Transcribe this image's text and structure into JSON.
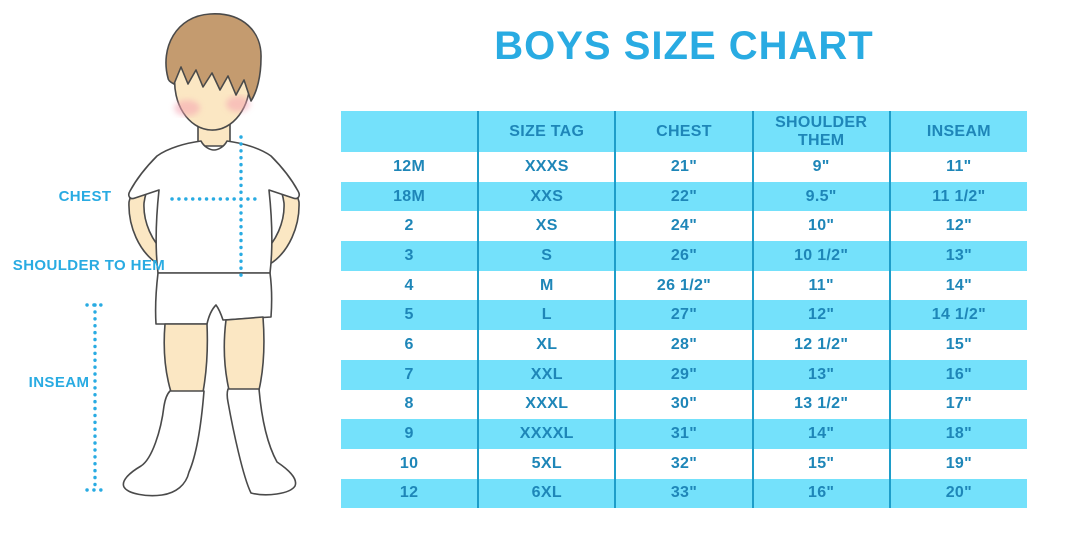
{
  "title": "BOYS SIZE CHART",
  "colors": {
    "accent": "#29ABE2",
    "band": "#74E1FB",
    "divider": "#1E9DC9",
    "table_text": "#1E86B8",
    "skin": "#FBE7C3",
    "hair": "#C49B6F",
    "outline": "#4A4A4A",
    "cheek": "#F5A3B1"
  },
  "figure": {
    "labels": {
      "chest": "CHEST",
      "shoulder_to_hem": "SHOULDER TO HEM",
      "inseam": "INSEAM"
    }
  },
  "table": {
    "headers": [
      "",
      "SIZE TAG",
      "CHEST",
      "SHOULDER THEM",
      "INSEAM"
    ],
    "rows": [
      [
        "12M",
        "XXXS",
        "21\"",
        "9\"",
        "11\""
      ],
      [
        "18M",
        "XXS",
        "22\"",
        "9.5\"",
        "11 1/2\""
      ],
      [
        "2",
        "XS",
        "24\"",
        "10\"",
        "12\""
      ],
      [
        "3",
        "S",
        "26\"",
        "10 1/2\"",
        "13\""
      ],
      [
        "4",
        "M",
        "26 1/2\"",
        "11\"",
        "14\""
      ],
      [
        "5",
        "L",
        "27\"",
        "12\"",
        "14 1/2\""
      ],
      [
        "6",
        "XL",
        "28\"",
        "12 1/2\"",
        "15\""
      ],
      [
        "7",
        "XXL",
        "29\"",
        "13\"",
        "16\""
      ],
      [
        "8",
        "XXXL",
        "30\"",
        "13 1/2\"",
        "17\""
      ],
      [
        "9",
        "XXXXL",
        "31\"",
        "14\"",
        "18\""
      ],
      [
        "10",
        "5XL",
        "32\"",
        "15\"",
        "19\""
      ],
      [
        "12",
        "6XL",
        "33\"",
        "16\"",
        "20\""
      ]
    ]
  },
  "chart_data": {
    "type": "table",
    "title": "BOYS SIZE CHART",
    "columns": [
      "",
      "SIZE TAG",
      "CHEST",
      "SHOULDER THEM",
      "INSEAM"
    ],
    "rows": [
      [
        "12M",
        "XXXS",
        "21\"",
        "9\"",
        "11\""
      ],
      [
        "18M",
        "XXS",
        "22\"",
        "9.5\"",
        "11 1/2\""
      ],
      [
        "2",
        "XS",
        "24\"",
        "10\"",
        "12\""
      ],
      [
        "3",
        "S",
        "26\"",
        "10 1/2\"",
        "13\""
      ],
      [
        "4",
        "M",
        "26 1/2\"",
        "11\"",
        "14\""
      ],
      [
        "5",
        "L",
        "27\"",
        "12\"",
        "14 1/2\""
      ],
      [
        "6",
        "XL",
        "28\"",
        "12 1/2\"",
        "15\""
      ],
      [
        "7",
        "XXL",
        "29\"",
        "13\"",
        "16\""
      ],
      [
        "8",
        "XXXL",
        "30\"",
        "13 1/2\"",
        "17\""
      ],
      [
        "9",
        "XXXXL",
        "31\"",
        "14\"",
        "18\""
      ],
      [
        "10",
        "5XL",
        "32\"",
        "15\"",
        "19\""
      ],
      [
        "12",
        "6XL",
        "33\"",
        "16\"",
        "20\""
      ]
    ],
    "annotations": [
      "CHEST",
      "SHOULDER TO HEM",
      "INSEAM"
    ],
    "legend_position": "none",
    "grid": "vertical-dividers-only"
  }
}
